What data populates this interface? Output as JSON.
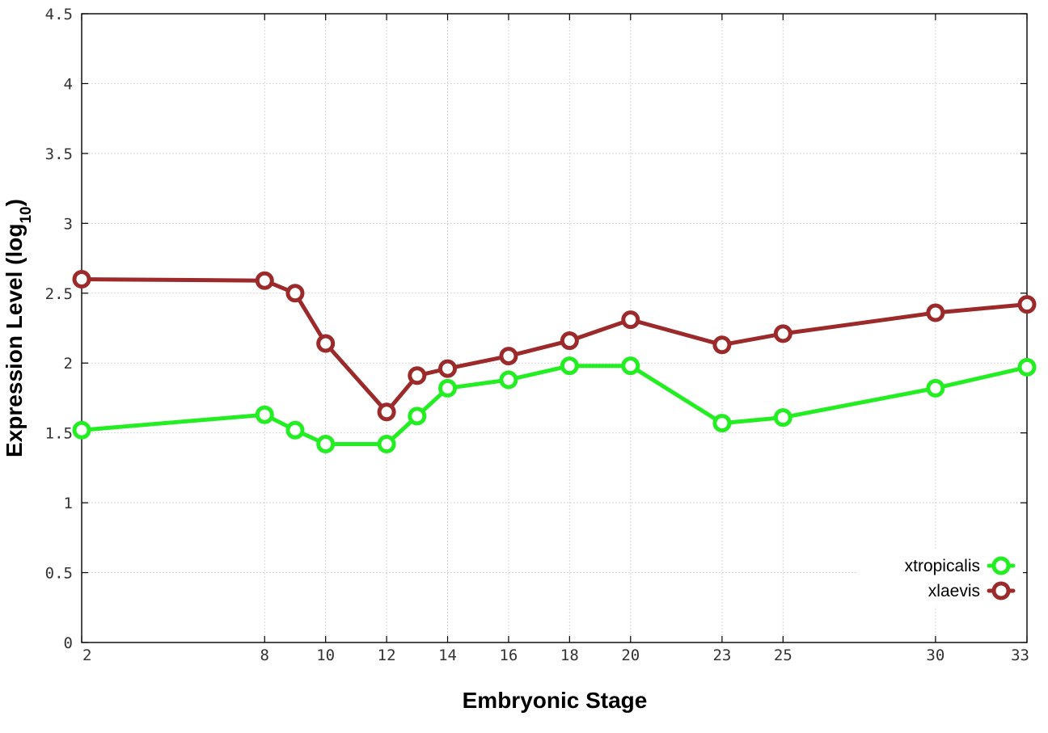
{
  "chart_data": {
    "type": "line",
    "title": "",
    "xlabel": "Embryonic Stage",
    "ylabel_main": "Expression Level (log",
    "ylabel_sub": "10",
    "ylabel_close": ")",
    "x": [
      2,
      8,
      9,
      10,
      12,
      13,
      14,
      16,
      18,
      20,
      23,
      25,
      30,
      33
    ],
    "xticks": [
      2,
      8,
      10,
      12,
      14,
      16,
      18,
      20,
      23,
      25,
      30,
      33
    ],
    "yticks": [
      "0",
      "0.5",
      "1",
      "1.5",
      "2",
      "2.5",
      "3",
      "3.5",
      "4",
      "4.5"
    ],
    "xlim": [
      2,
      33
    ],
    "ylim": [
      0,
      4.5
    ],
    "grid": true,
    "legend_position": "bottom-right",
    "series": [
      {
        "name": "xtropicalis",
        "color": "#22ee22",
        "values": [
          1.52,
          1.63,
          1.52,
          1.42,
          1.42,
          1.62,
          1.82,
          1.88,
          1.98,
          1.98,
          1.57,
          1.61,
          1.82,
          1.97
        ]
      },
      {
        "name": "xlaevis",
        "color": "#9c2a2a",
        "values": [
          2.6,
          2.59,
          2.5,
          2.14,
          1.65,
          1.91,
          1.96,
          2.05,
          2.16,
          2.31,
          2.13,
          2.21,
          2.36,
          2.42
        ]
      }
    ]
  }
}
